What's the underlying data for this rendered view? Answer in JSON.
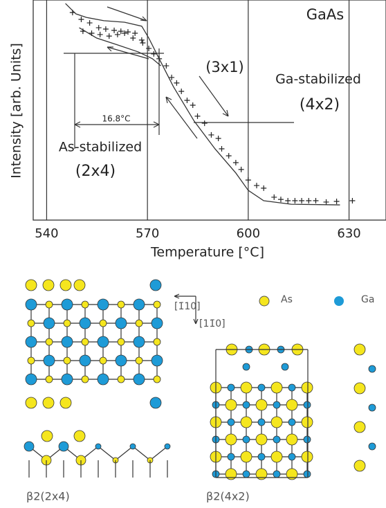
{
  "chart_data": {
    "type": "scatter",
    "xlabel": "Temperature [°C]",
    "ylabel": "Intensity [arb. Units]",
    "xlim": [
      536,
      641
    ],
    "xticks": [
      540,
      570,
      600,
      630
    ],
    "ylim": [
      0,
      100
    ],
    "grid": true,
    "annotations": [
      "GaAs",
      "(3x1)",
      "Ga-stabilized",
      "(4x2)",
      "16.8°C",
      "As-stabilized",
      "(2x4)"
    ],
    "series": [
      {
        "type": "scatter",
        "color": "#222",
        "x": [
          547.7,
          550.3,
          552.8,
          555.5,
          557.6,
          560.1,
          562.1,
          564.2,
          566.3,
          568.3,
          550.8,
          553.4,
          555.9,
          558.6,
          561.1,
          563.2,
          565.7,
          568.6,
          570.4,
          571.9,
          573.5,
          575.6,
          577.2,
          578.7,
          580.1,
          581.8,
          583.5,
          584.9,
          587.0,
          589.0,
          591.1,
          592.1,
          594.2,
          596.3,
          597.9,
          600.0,
          602.5,
          604.6,
          607.7,
          609.7,
          611.8,
          613.9,
          615.9,
          618.0,
          620.1,
          623.2,
          626.3,
          631.0
        ],
        "values": [
          94.3,
          91.2,
          89.6,
          87.4,
          86.8,
          86.2,
          85.8,
          85.5,
          84.9,
          81.8,
          85.8,
          84.9,
          84.3,
          83.6,
          84.3,
          84.9,
          82.7,
          80.5,
          78.0,
          75.5,
          73.3,
          70.1,
          64.8,
          62.3,
          58.5,
          54.4,
          52.2,
          47.2,
          44.0,
          38.7,
          37.1,
          32.4,
          29.2,
          26.1,
          23.0,
          18.2,
          15.7,
          14.5,
          10.4,
          9.4,
          8.8,
          8.8,
          8.8,
          8.8,
          8.8,
          8.2,
          8.5,
          8.8
        ]
      },
      {
        "type": "line",
        "color": "#333",
        "x": [
          545.6,
          548.7,
          551.8,
          557.0,
          563.2,
          568.3,
          570.4,
          573.5,
          577.7,
          583.9,
          590.1,
          596.3,
          600.0,
          604.6,
          612.8,
          627.3,
          null,
          549.7,
          554.9,
          561.1,
          567.3,
          571.5,
          574.0
        ],
        "values": [
          98.4,
          93.7,
          92.1,
          90.6,
          89.9,
          88.1,
          82.7,
          73.3,
          60.7,
          45.0,
          32.4,
          21.4,
          13.5,
          8.8,
          7.2,
          6.9,
          null,
          87.4,
          82.7,
          79.6,
          76.4,
          73.3,
          70.1
        ]
      }
    ]
  },
  "diagram": {
    "legend": [
      "As",
      "Ga"
    ],
    "directions": [
      "[1̄10]",
      "[11̄0]"
    ],
    "labels": [
      "β2(2x4)",
      "β2(4x2)"
    ]
  }
}
